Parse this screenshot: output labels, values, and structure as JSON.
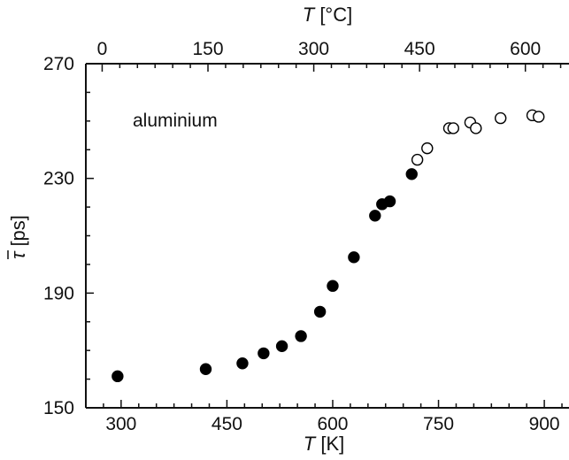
{
  "chart_data": {
    "type": "scatter",
    "annotation": "aluminium",
    "xlabel": {
      "italic": "T",
      "unit": " [K]"
    },
    "x2label": {
      "italic": "T",
      "unit": " [°C]"
    },
    "ylabel": {
      "symbol": "τ",
      "unit": " [ps]"
    },
    "xlim": [
      250,
      935
    ],
    "x2lim": [
      -23.15,
      661.85
    ],
    "ylim": [
      150,
      270
    ],
    "xticks": [
      300,
      450,
      600,
      750,
      900
    ],
    "xtick_labels": [
      "300",
      "450",
      "600",
      "750",
      "900"
    ],
    "x2ticks": [
      0,
      150,
      300,
      450,
      600
    ],
    "x2tick_labels": [
      "0",
      "150",
      "300",
      "450",
      "600"
    ],
    "yticks": [
      150,
      190,
      230,
      270
    ],
    "ytick_labels": [
      "150",
      "190",
      "230",
      "270"
    ],
    "grid": false,
    "series": [
      {
        "marker": "filled-circle",
        "color": "#000000",
        "x": [
          295,
          420,
          472,
          502,
          528,
          555,
          582,
          600,
          630,
          660,
          670,
          681,
          712
        ],
        "y": [
          161,
          163.5,
          165.5,
          169,
          171.5,
          175,
          183.5,
          192.5,
          202.5,
          217,
          221,
          222,
          231.5
        ]
      },
      {
        "marker": "open-circle",
        "color": "#000000",
        "x": [
          720,
          734,
          765,
          771,
          795,
          803,
          838,
          883,
          892
        ],
        "y": [
          236.5,
          240.5,
          247.5,
          247.5,
          249.5,
          247.5,
          251,
          252,
          251.5
        ]
      }
    ]
  }
}
